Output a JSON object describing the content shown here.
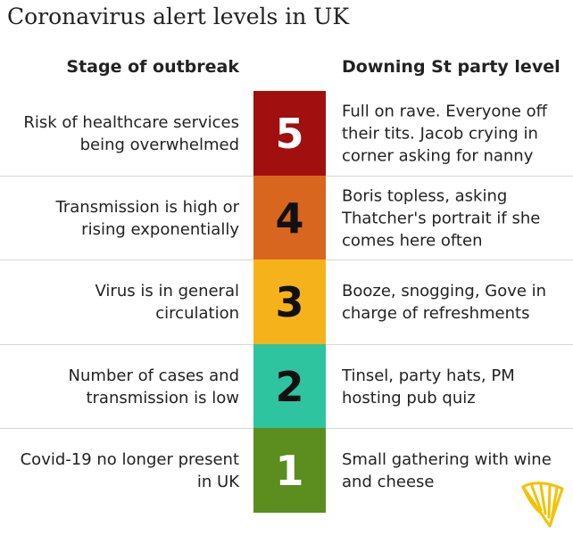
{
  "title": "Coronavirus alert levels in UK",
  "headers": {
    "stage": "Stage of outbreak",
    "party": "Downing St party level"
  },
  "levels": [
    {
      "level": "5",
      "stage": "Risk of healthcare services being overwhelmed",
      "party": "Full on rave. Everyone off their tits. Jacob crying in corner asking for nanny",
      "color": "#a10f0f"
    },
    {
      "level": "4",
      "stage": "Transmission is high or rising exponentially",
      "party": "Boris topless, asking Thatcher's portrait if she comes here often",
      "color": "#d8661f"
    },
    {
      "level": "3",
      "stage": "Virus is in general circulation",
      "party": "Booze, snogging, Gove in charge of refreshments",
      "color": "#f6b21b"
    },
    {
      "level": "2",
      "stage": "Number of cases and transmission is low",
      "party": "Tinsel, party hats, PM hosting pub quiz",
      "color": "#2ec4a0"
    },
    {
      "level": "1",
      "stage": "Covid-19 no longer present in UK",
      "party": "Small gathering with wine and cheese",
      "color": "#5b8d1f"
    }
  ],
  "logo_color": "#f3c200"
}
